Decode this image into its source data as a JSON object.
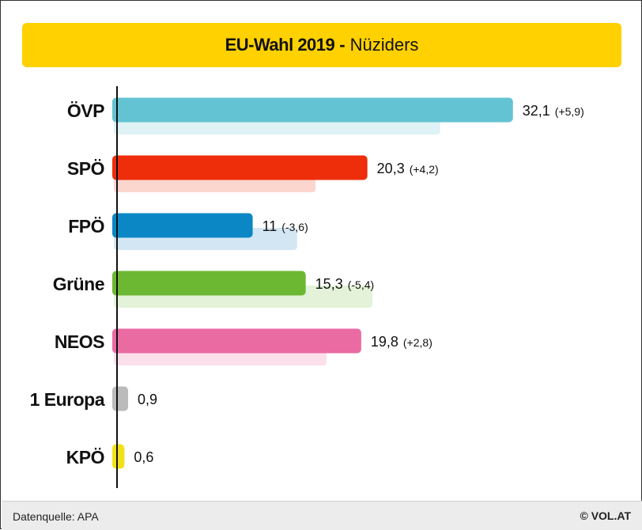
{
  "header": {
    "title_main": "EU-Wahl 2019",
    "title_sep": "-",
    "title_sub": "Nüziders"
  },
  "chart_data": {
    "type": "bar",
    "orientation": "horizontal",
    "categories": [
      "ÖVP",
      "SPÖ",
      "FPÖ",
      "Grüne",
      "NEOS",
      "1 Europa",
      "KPÖ"
    ],
    "series": [
      {
        "values": [
          32.1,
          20.3,
          11,
          15.3,
          19.8,
          0.9,
          0.6
        ]
      },
      {
        "values": [
          26.2,
          16.1,
          14.6,
          20.7,
          17.0,
          null,
          null
        ]
      }
    ],
    "value_labels": [
      "32,1",
      "20,3",
      "11",
      "15,3",
      "19,8",
      "0,9",
      "0,6"
    ],
    "change_labels": [
      "(+5,9)",
      "(+4,2)",
      "(-3,6)",
      "(-5,4)",
      "(+2,8)",
      "",
      ""
    ],
    "colors": [
      "#64c3d2",
      "#ee2d0b",
      "#0c87c6",
      "#6cb833",
      "#ea6aa2",
      "#bbbbbb",
      "#f1e11a"
    ],
    "prev_colors": [
      "#dff2f5",
      "#fbd6cf",
      "#d3e6f3",
      "#e3f2d8",
      "#fbe0ec",
      "#eeeeee",
      "#fcf6c4"
    ],
    "xlim": [
      0,
      35
    ],
    "grid": false,
    "legend": "none"
  },
  "footer": {
    "source": "Datenquelle: APA",
    "copyright": "© VOL.AT"
  }
}
